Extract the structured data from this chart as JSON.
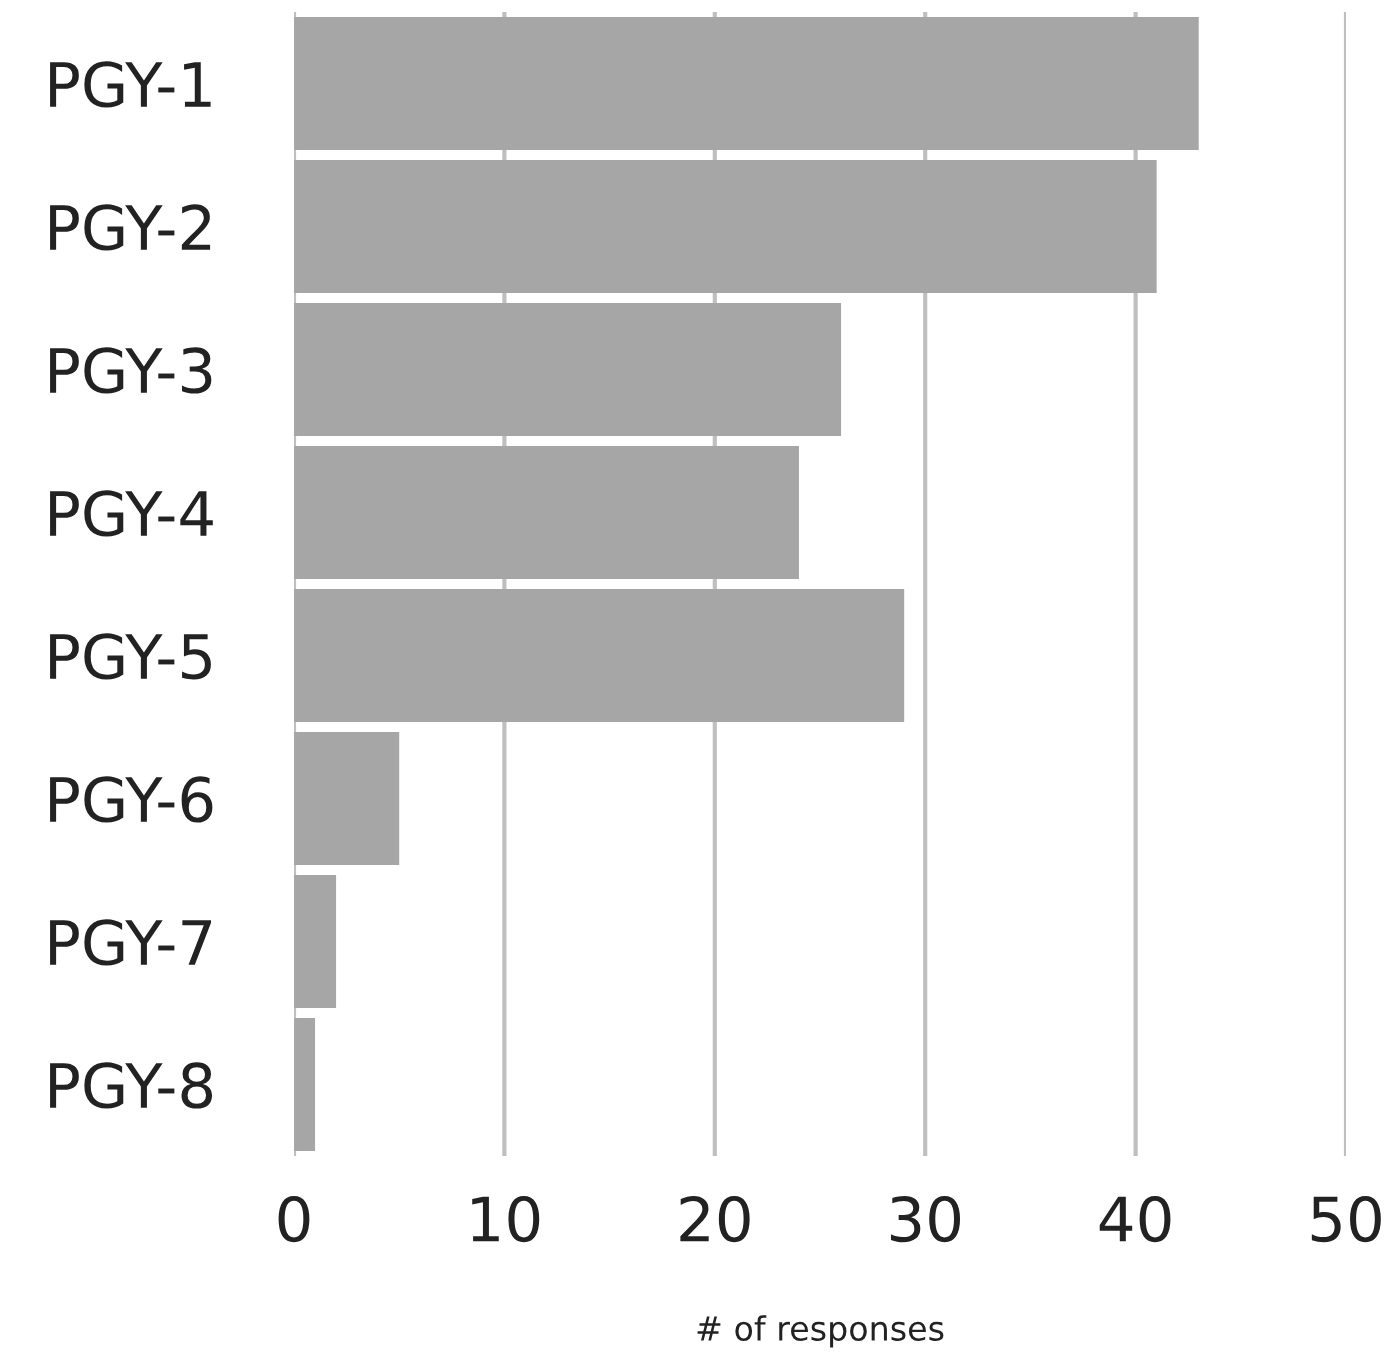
{
  "chart_data": {
    "type": "bar",
    "orientation": "horizontal",
    "xlabel": "# of responses",
    "categories": [
      "PGY-1",
      "PGY-2",
      "PGY-3",
      "PGY-4",
      "PGY-5",
      "PGY-6",
      "PGY-7",
      "PGY-8"
    ],
    "values": [
      43,
      41,
      26,
      24,
      29,
      5,
      2,
      1
    ],
    "color": "#a6a6a6",
    "xlim": [
      0,
      50
    ],
    "xticks": [
      0,
      10,
      20,
      30,
      40,
      50
    ],
    "grid": "x"
  }
}
